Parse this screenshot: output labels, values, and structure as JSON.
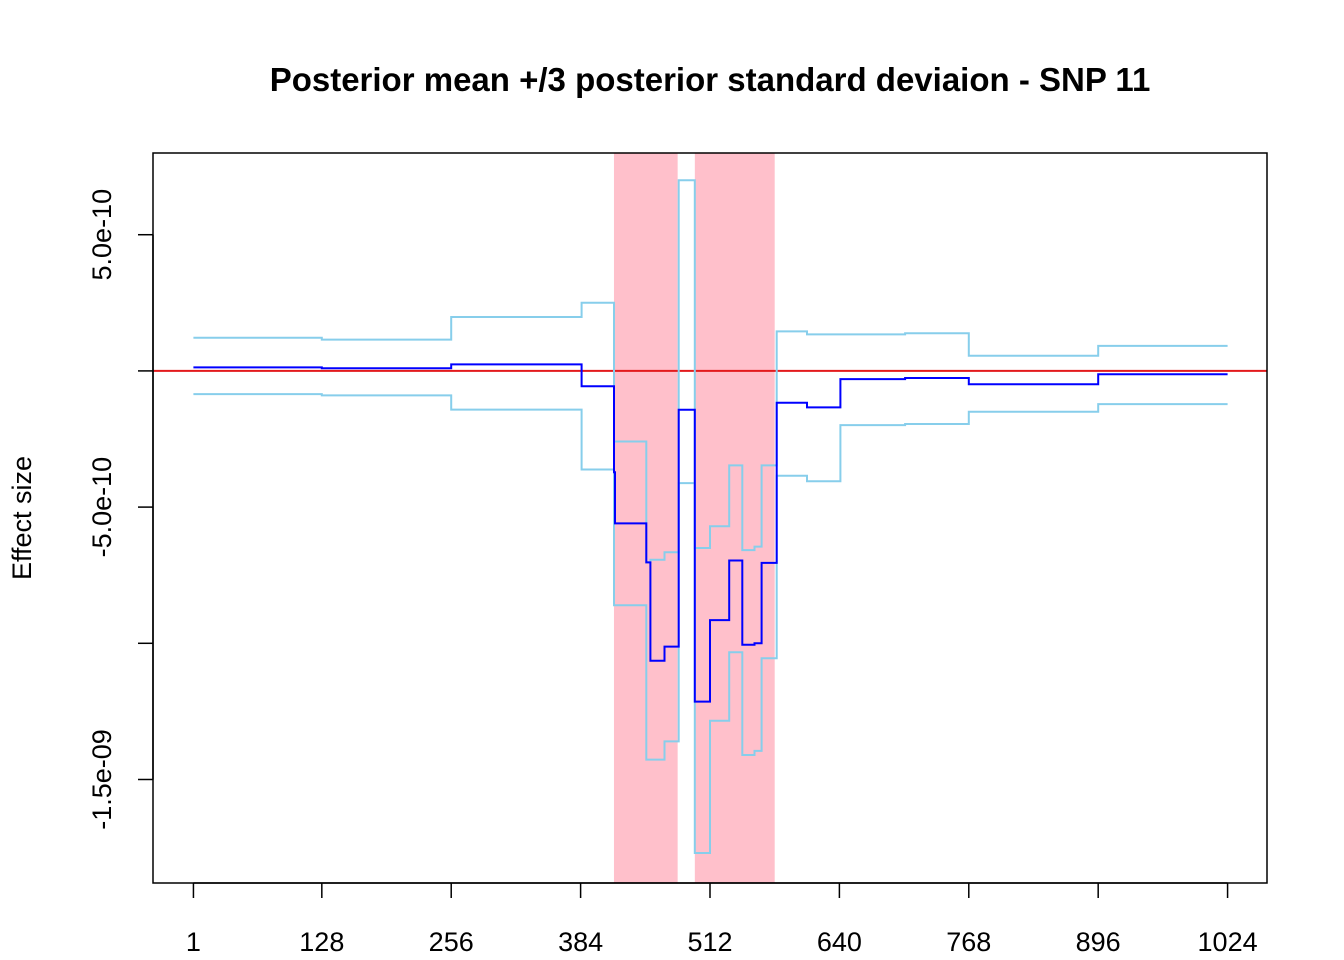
{
  "chart_data": {
    "type": "line",
    "title": "Posterior mean +/3 posterior standard deviaion - SNP 11",
    "xlabel": "",
    "ylabel": "Effect size",
    "xlim": [
      -39,
      1063
    ],
    "ylim": [
      -1.88e-09,
      8e-10
    ],
    "x_ticks": [
      1,
      128,
      256,
      384,
      512,
      640,
      768,
      896,
      1024
    ],
    "x_tick_labels": [
      "1",
      "128",
      "256",
      "384",
      "512",
      "640",
      "768",
      "896",
      "1024"
    ],
    "y_ticks": [
      5e-10,
      -5e-10,
      -1.5e-09
    ],
    "y_tick_labels": [
      "5.0e-10",
      "-5.0e-10",
      "-1.5e-09"
    ],
    "y_minor_ticks": [
      0,
      -1e-09
    ],
    "grid": false,
    "highlight_regions": [
      {
        "x0": 417,
        "x1": 480,
        "color": "#FFC0CB"
      },
      {
        "x0": 497,
        "x1": 576,
        "color": "#FFC0CB"
      }
    ],
    "reference_line": {
      "y": 0,
      "color": "#E31A1C"
    },
    "series": [
      {
        "role": "mean",
        "color": "#0000FF",
        "steps": [
          {
            "x": 1,
            "y": 1.3e-11
          },
          {
            "x": 128,
            "y": 1e-11
          },
          {
            "x": 256,
            "y": 2.4e-11
          },
          {
            "x": 385,
            "y": -5.6e-11
          },
          {
            "x": 417,
            "y": -3.72e-10
          },
          {
            "x": 418,
            "y": -5.6e-10
          },
          {
            "x": 449,
            "y": -7.03e-10
          },
          {
            "x": 453,
            "y": -1.064e-09
          },
          {
            "x": 467,
            "y": -1.012e-09
          },
          {
            "x": 481,
            "y": -1.425e-10
          },
          {
            "x": 497,
            "y": -1.214e-09
          },
          {
            "x": 512,
            "y": -9.15e-10
          },
          {
            "x": 531,
            "y": -6.96e-10
          },
          {
            "x": 544,
            "y": -1.005e-09
          },
          {
            "x": 556,
            "y": -1e-09
          },
          {
            "x": 563,
            "y": -7.05e-10
          },
          {
            "x": 578,
            "y": -1.17e-10
          },
          {
            "x": 608,
            "y": -1.34e-10
          },
          {
            "x": 641,
            "y": -3e-11
          },
          {
            "x": 705,
            "y": -2.6e-11
          },
          {
            "x": 768,
            "y": -4.9e-11
          },
          {
            "x": 896,
            "y": -1.2e-11
          },
          {
            "x": 1024,
            "y": -1.2e-11
          }
        ]
      },
      {
        "role": "upper",
        "color": "#87CEEB",
        "steps": [
          {
            "x": 1,
            "y": 1.22e-10
          },
          {
            "x": 128,
            "y": 1.15e-10
          },
          {
            "x": 256,
            "y": 1.98e-10
          },
          {
            "x": 385,
            "y": 2.5e-10
          },
          {
            "x": 417,
            "y": -2.59e-10
          },
          {
            "x": 449,
            "y": -7.03e-10
          },
          {
            "x": 453,
            "y": -6.93e-10
          },
          {
            "x": 467,
            "y": -6.66e-10
          },
          {
            "x": 481,
            "y": 7e-10
          },
          {
            "x": 497,
            "y": -6.5e-10
          },
          {
            "x": 512,
            "y": -5.7e-10
          },
          {
            "x": 531,
            "y": -3.47e-10
          },
          {
            "x": 544,
            "y": -6.58e-10
          },
          {
            "x": 556,
            "y": -6.45e-10
          },
          {
            "x": 563,
            "y": -3.47e-10
          },
          {
            "x": 578,
            "y": 1.45e-10
          },
          {
            "x": 608,
            "y": 1.34e-10
          },
          {
            "x": 641,
            "y": 1.34e-10
          },
          {
            "x": 705,
            "y": 1.38e-10
          },
          {
            "x": 768,
            "y": 5.6e-11
          },
          {
            "x": 896,
            "y": 9.2e-11
          },
          {
            "x": 1024,
            "y": 9.2e-11
          }
        ]
      },
      {
        "role": "lower",
        "color": "#87CEEB",
        "steps": [
          {
            "x": 1,
            "y": -8.5e-11
          },
          {
            "x": 128,
            "y": -9e-11
          },
          {
            "x": 256,
            "y": -1.42e-10
          },
          {
            "x": 385,
            "y": -3.62e-10
          },
          {
            "x": 417,
            "y": -8.6e-10
          },
          {
            "x": 449,
            "y": -1.427e-09
          },
          {
            "x": 467,
            "y": -1.36e-09
          },
          {
            "x": 481,
            "y": -4.12e-10
          },
          {
            "x": 497,
            "y": -1.77e-09
          },
          {
            "x": 512,
            "y": -1.284e-09
          },
          {
            "x": 531,
            "y": -1.033e-09
          },
          {
            "x": 544,
            "y": -1.41e-09
          },
          {
            "x": 556,
            "y": -1.395e-09
          },
          {
            "x": 563,
            "y": -1.055e-09
          },
          {
            "x": 578,
            "y": -3.85e-10
          },
          {
            "x": 608,
            "y": -4.05e-10
          },
          {
            "x": 641,
            "y": -1.99e-10
          },
          {
            "x": 705,
            "y": -1.95e-10
          },
          {
            "x": 768,
            "y": -1.5e-10
          },
          {
            "x": 896,
            "y": -1.22e-10
          },
          {
            "x": 1024,
            "y": -1.22e-10
          }
        ]
      }
    ]
  }
}
